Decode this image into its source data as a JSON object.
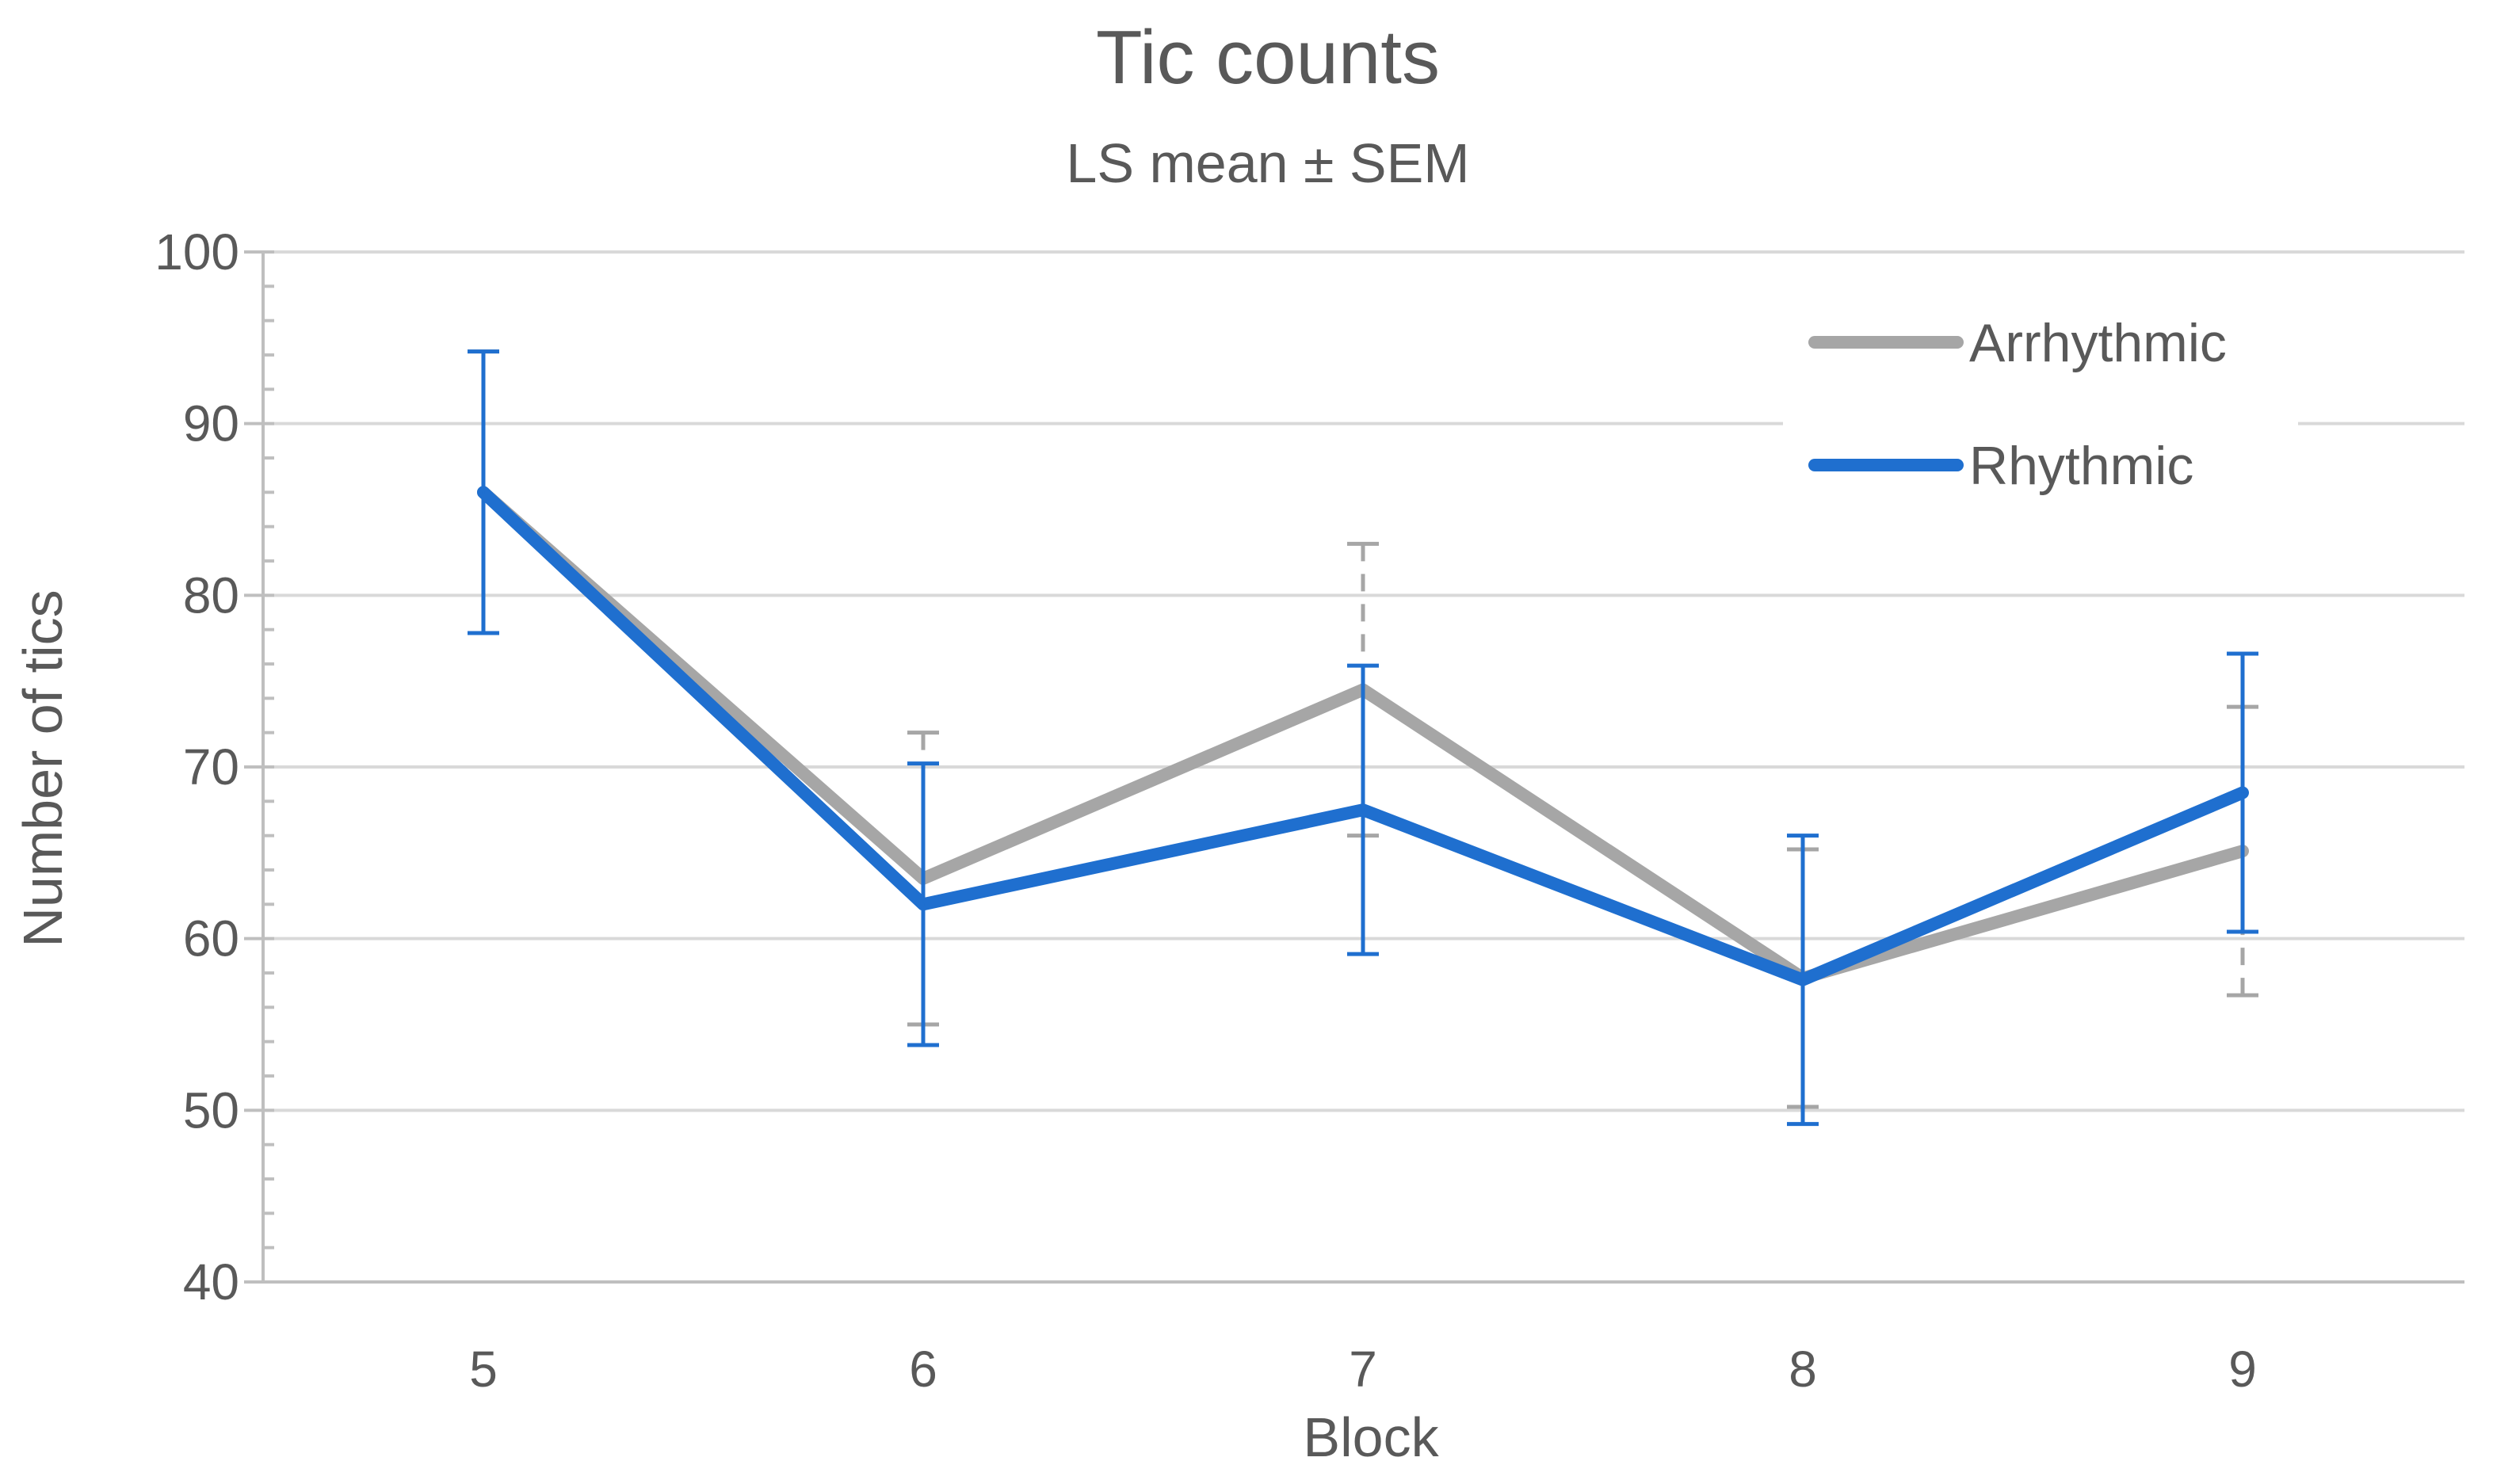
{
  "chart_data": {
    "type": "line",
    "title": "Tic counts",
    "subtitle": "LS mean ± SEM",
    "xlabel": "Block",
    "ylabel": "Number of tics",
    "categories": [
      "5",
      "6",
      "7",
      "8",
      "9"
    ],
    "ylim": [
      40,
      100
    ],
    "yticks": [
      "40",
      "50",
      "60",
      "70",
      "80",
      "90",
      "100"
    ],
    "grid": true,
    "legend_position": "top-right",
    "series": [
      {
        "name": "Arrhythmic",
        "color": "#a6a6a6",
        "error_style": "dashed",
        "values": [
          86,
          63.5,
          74.5,
          57.7,
          65.1
        ],
        "sem": [
          8.2,
          8.5,
          8.5,
          7.5,
          8.4
        ]
      },
      {
        "name": "Rhythmic",
        "color": "#1f6fcf",
        "error_style": "solid",
        "values": [
          86,
          62,
          67.5,
          57.6,
          68.5
        ],
        "sem": [
          8.2,
          8.2,
          8.4,
          8.4,
          8.1
        ]
      }
    ]
  }
}
